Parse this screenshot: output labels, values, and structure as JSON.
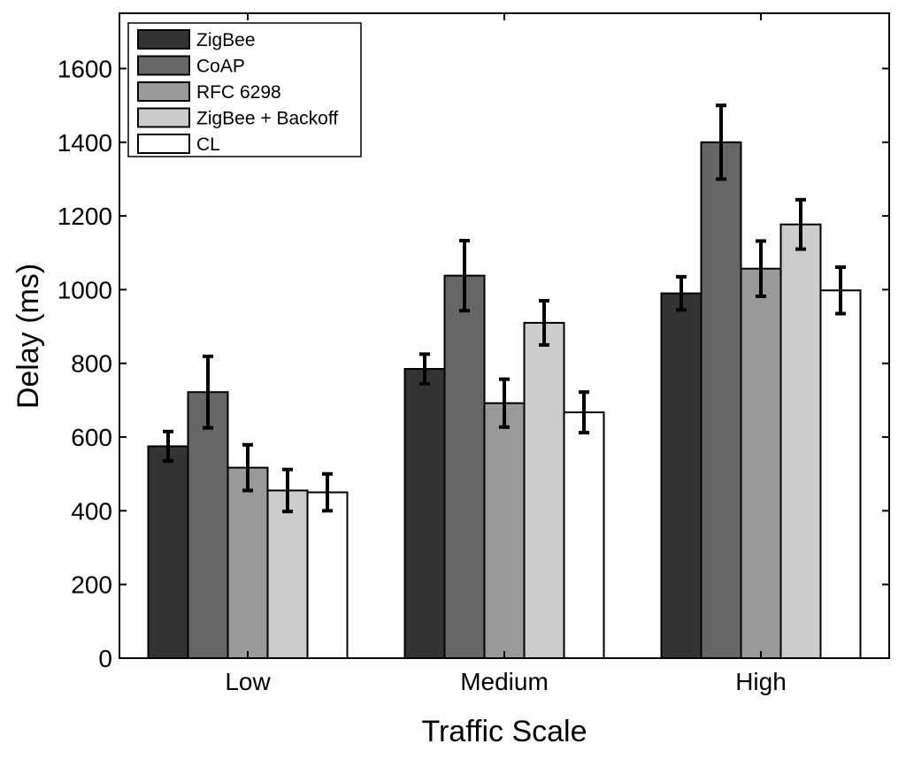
{
  "chart_data": {
    "type": "bar",
    "title": "",
    "xlabel": "Traffic Scale",
    "ylabel": "Delay (ms)",
    "categories": [
      "Low",
      "Medium",
      "High"
    ],
    "ylim": [
      0,
      1750
    ],
    "yticks": [
      0,
      200,
      400,
      600,
      800,
      1000,
      1200,
      1400,
      1600
    ],
    "grid": false,
    "legend_position": "top-left",
    "series": [
      {
        "name": "ZigBee",
        "color": "#333333",
        "values": [
          575,
          785,
          990
        ],
        "errors": [
          40,
          40,
          45
        ]
      },
      {
        "name": "CoAP",
        "color": "#666666",
        "values": [
          722,
          1038,
          1400
        ],
        "errors": [
          97,
          95,
          100
        ]
      },
      {
        "name": "RFC 6298",
        "color": "#999999",
        "values": [
          517,
          692,
          1057
        ],
        "errors": [
          62,
          65,
          75
        ]
      },
      {
        "name": "ZigBee + Backoff",
        "color": "#cccccc",
        "values": [
          455,
          910,
          1177
        ],
        "errors": [
          57,
          60,
          67
        ]
      },
      {
        "name": "CL",
        "color": "#ffffff",
        "values": [
          450,
          667,
          998
        ],
        "errors": [
          50,
          55,
          63
        ]
      }
    ]
  }
}
